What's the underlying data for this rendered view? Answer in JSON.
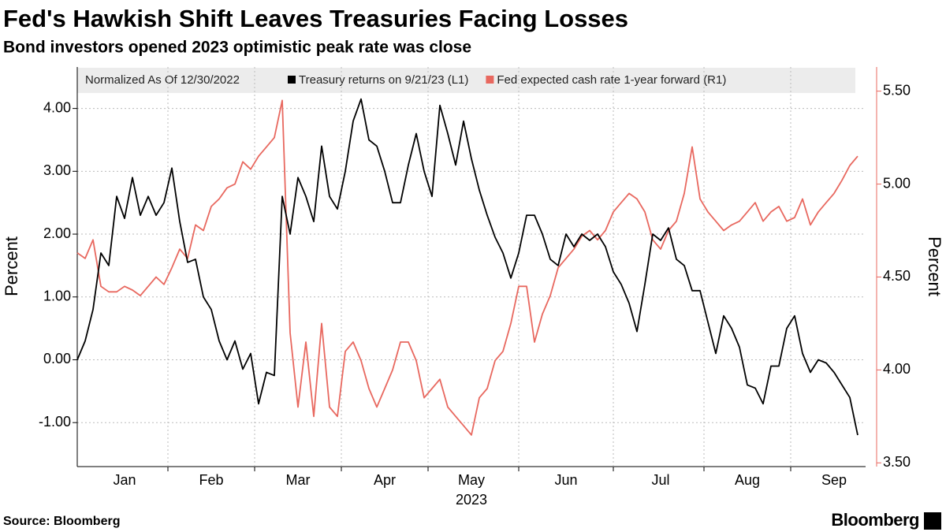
{
  "chart_data": {
    "type": "line",
    "title": "Fed's Hawkish Shift Leaves Treasuries Facing Losses",
    "subtitle": "Bond investors opened 2023 optimistic peak rate was close",
    "legend_note": "Normalized As Of 12/30/2022",
    "ylabel": "Percent",
    "y2label": "Percent",
    "xlabel": "2023",
    "source": "Source: Bloomberg",
    "brand": "Bloomberg",
    "categories": [
      null,
      null,
      null,
      null,
      null,
      null,
      "Jan",
      null,
      null,
      null,
      null,
      null,
      null,
      null,
      null,
      null,
      null,
      "Feb",
      null,
      null,
      null,
      null,
      null,
      null,
      null,
      null,
      null,
      null,
      "Mar",
      null,
      null,
      null,
      null,
      null,
      null,
      null,
      null,
      null,
      null,
      "Apr",
      null,
      null,
      null,
      null,
      null,
      null,
      null,
      null,
      null,
      null,
      "May",
      null,
      null,
      null,
      null,
      null,
      null,
      null,
      null,
      null,
      null,
      null,
      "Jun",
      null,
      null,
      null,
      null,
      null,
      null,
      null,
      null,
      null,
      null,
      null,
      "Jul",
      null,
      null,
      null,
      null,
      null,
      null,
      null,
      null,
      null,
      null,
      "Aug",
      null,
      null,
      null,
      null,
      null,
      null,
      null,
      null,
      null,
      null,
      "Sep",
      null,
      null,
      null
    ],
    "ylim": [
      -1.7,
      4.66
    ],
    "yticks": [
      {
        "value": -1,
        "label": "-1.00"
      },
      {
        "value": 0,
        "label": "0.00"
      },
      {
        "value": 1,
        "label": "1.00"
      },
      {
        "value": 2,
        "label": "2.00"
      },
      {
        "value": 3,
        "label": "3.00"
      },
      {
        "value": 4,
        "label": "4.00"
      }
    ],
    "y2lim": [
      3.48,
      5.63
    ],
    "y2ticks": [
      {
        "value": 3.5,
        "label": "3.50"
      },
      {
        "value": 4,
        "label": "4.00"
      },
      {
        "value": 4.5,
        "label": "4.50"
      },
      {
        "value": 5,
        "label": "5.00"
      },
      {
        "value": 5.5,
        "label": "5.50"
      }
    ],
    "grid": true,
    "y2color": "#e8685f",
    "series": [
      {
        "name": "Treasury returns on 9/21/23 (L1)",
        "color": "#000000",
        "axis": "y",
        "values": [
          0.0,
          0.3,
          0.8,
          1.7,
          1.5,
          2.6,
          2.25,
          2.9,
          2.3,
          2.6,
          2.3,
          2.5,
          3.05,
          2.2,
          1.55,
          1.6,
          1.0,
          0.8,
          0.3,
          0.0,
          0.3,
          -0.15,
          0.1,
          -0.7,
          -0.2,
          -0.25,
          2.6,
          2.0,
          2.9,
          2.6,
          2.2,
          3.4,
          2.6,
          2.4,
          3.0,
          3.8,
          4.15,
          3.5,
          3.4,
          3.0,
          2.5,
          2.5,
          3.1,
          3.6,
          3.0,
          2.6,
          4.05,
          3.6,
          3.1,
          3.8,
          3.2,
          2.7,
          2.3,
          1.95,
          1.7,
          1.3,
          1.7,
          2.3,
          2.3,
          2.0,
          1.6,
          1.5,
          2.0,
          1.8,
          2.0,
          1.9,
          2.0,
          1.8,
          1.4,
          1.2,
          0.9,
          0.45,
          1.2,
          2.0,
          1.9,
          2.1,
          1.6,
          1.5,
          1.1,
          1.1,
          0.6,
          0.1,
          0.7,
          0.5,
          0.2,
          -0.4,
          -0.45,
          -0.7,
          -0.1,
          -0.1,
          0.5,
          0.7,
          0.1,
          -0.2,
          0.0,
          -0.05,
          -0.2,
          -0.4,
          -0.6,
          -1.2
        ]
      },
      {
        "name": "Fed expected cash rate 1-year forward (R1)",
        "color": "#e8685f",
        "axis": "y2",
        "values": [
          4.63,
          4.6,
          4.7,
          4.45,
          4.42,
          4.42,
          4.45,
          4.43,
          4.4,
          4.45,
          4.5,
          4.46,
          4.55,
          4.65,
          4.6,
          4.78,
          4.75,
          4.88,
          4.92,
          4.98,
          5.0,
          5.12,
          5.08,
          5.15,
          5.2,
          5.25,
          5.45,
          4.2,
          3.8,
          4.15,
          3.75,
          4.25,
          3.8,
          3.75,
          4.1,
          4.15,
          4.05,
          3.9,
          3.8,
          3.9,
          4.0,
          4.15,
          4.15,
          4.05,
          3.85,
          3.9,
          3.95,
          3.8,
          3.75,
          3.7,
          3.65,
          3.85,
          3.9,
          4.05,
          4.1,
          4.25,
          4.45,
          4.45,
          4.15,
          4.3,
          4.4,
          4.55,
          4.6,
          4.65,
          4.72,
          4.75,
          4.7,
          4.75,
          4.85,
          4.9,
          4.95,
          4.92,
          4.85,
          4.7,
          4.65,
          4.75,
          4.8,
          4.95,
          5.2,
          4.92,
          4.85,
          4.8,
          4.75,
          4.78,
          4.8,
          4.85,
          4.9,
          4.8,
          4.85,
          4.88,
          4.8,
          4.82,
          4.92,
          4.78,
          4.85,
          4.9,
          4.95,
          5.02,
          5.1,
          5.15
        ]
      }
    ]
  }
}
